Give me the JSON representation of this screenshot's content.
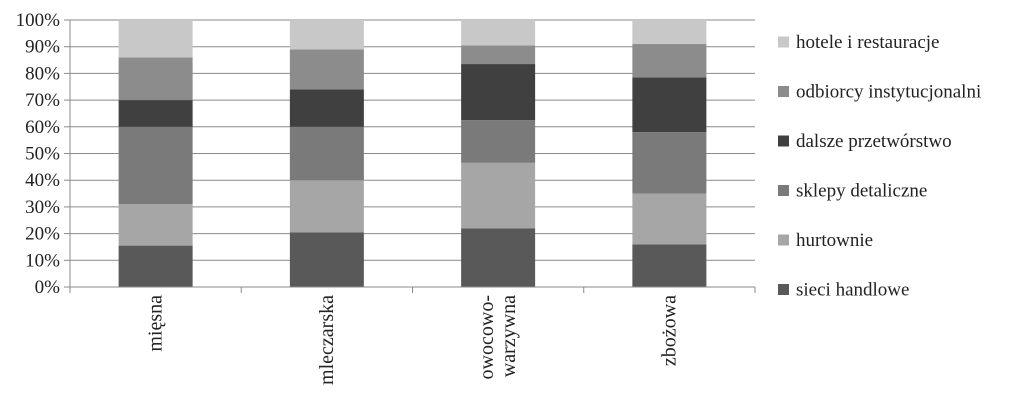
{
  "chart_data": {
    "type": "bar",
    "stacked": true,
    "categories": [
      [
        "mięsna"
      ],
      [
        "mleczarska"
      ],
      [
        "owocowo-",
        "warzywna"
      ],
      [
        "zbożowa"
      ]
    ],
    "series": [
      {
        "name": "sieci handlowe",
        "color": "#595959",
        "values": [
          15.5,
          20.5,
          22,
          16
        ]
      },
      {
        "name": "hurtownie",
        "color": "#a6a6a6",
        "values": [
          15.5,
          19.5,
          24.5,
          19
        ]
      },
      {
        "name": "sklepy detaliczne",
        "color": "#7a7a7a",
        "values": [
          29,
          20,
          16,
          23
        ]
      },
      {
        "name": "dalsze przetwórstwo",
        "color": "#404040",
        "values": [
          10,
          14,
          21,
          20.5
        ]
      },
      {
        "name": "odbiorcy instytucjonalni",
        "color": "#8c8c8c",
        "values": [
          16,
          15,
          7,
          12.5
        ]
      },
      {
        "name": "hotele i restauracje",
        "color": "#c8c8c8",
        "values": [
          14,
          11,
          9.5,
          9
        ]
      }
    ],
    "y_ticks": [
      "0%",
      "10%",
      "20%",
      "30%",
      "40%",
      "50%",
      "60%",
      "70%",
      "80%",
      "90%",
      "100%"
    ],
    "ylim": [
      0,
      100
    ],
    "grid": true,
    "legend_position": "right",
    "legend_order": "reversed",
    "title": "",
    "xlabel": "",
    "ylabel": ""
  }
}
